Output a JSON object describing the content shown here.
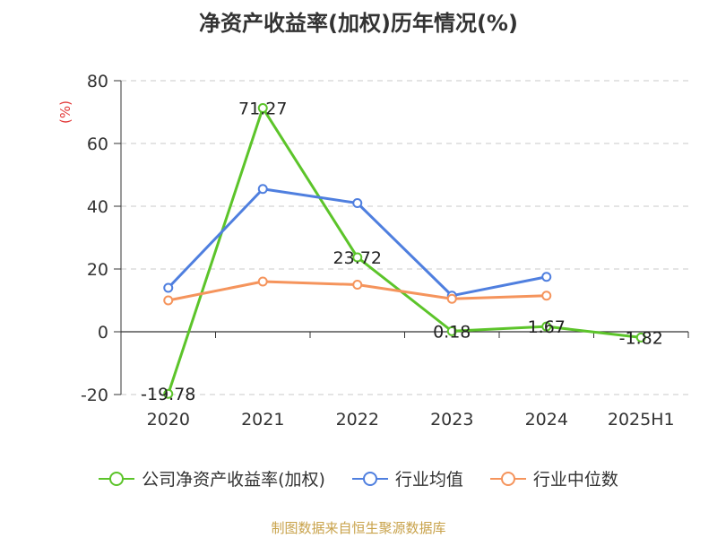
{
  "title": "净资产收益率(加权)历年情况(%)",
  "source": "制图数据来自恒生聚源数据库",
  "chart_data": {
    "type": "line",
    "title": "净资产收益率(加权)历年情况(%)",
    "ylabel": "(%)",
    "categories": [
      "2020",
      "2021",
      "2022",
      "2023",
      "2024",
      "2025H1"
    ],
    "ylim": [
      -20,
      80
    ],
    "yticks": [
      -20,
      0,
      20,
      40,
      60,
      80
    ],
    "grid": true,
    "legend_position": "bottom",
    "series": [
      {
        "name": "公司净资产收益率(加权)",
        "values": [
          -19.78,
          71.27,
          23.72,
          0.18,
          1.67,
          -1.82
        ],
        "labels": [
          "-19.78",
          "71.27",
          "23.72",
          "0.18",
          "1.67",
          "-1.82"
        ],
        "color": "#5cc42a"
      },
      {
        "name": "行业均值",
        "values": [
          14.0,
          45.5,
          41.0,
          11.5,
          17.5,
          null
        ],
        "color": "#4f7fdf"
      },
      {
        "name": "行业中位数",
        "values": [
          10.0,
          16.0,
          15.0,
          10.5,
          11.5,
          null
        ],
        "color": "#f5945c"
      }
    ]
  }
}
